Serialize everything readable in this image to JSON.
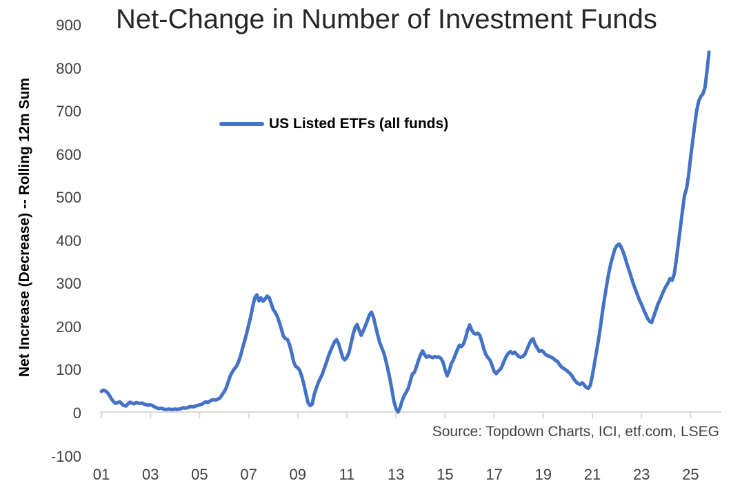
{
  "colors": {
    "series": "#4472C4",
    "axis": "#D9D9D9",
    "tick_text": "#404040",
    "title_text": "#262626"
  },
  "chart_data": {
    "type": "line",
    "title": "Net-Change in Number of Investment Funds",
    "xlabel": "",
    "ylabel": "Net Increase (Decrease) -- Rolling 12m Sum",
    "source_note": "Source: Topdown Charts, ICI, etf.com, LSEG",
    "legend_position": "upper-left-inside",
    "grid": "off",
    "ylim": [
      -100,
      900
    ],
    "xlim": [
      2001,
      2025.8
    ],
    "y_ticks": [
      900,
      800,
      700,
      600,
      500,
      400,
      300,
      200,
      100,
      0,
      -100
    ],
    "x_tick_years": [
      2001,
      2003,
      2005,
      2007,
      2009,
      2011,
      2013,
      2015,
      2017,
      2019,
      2021,
      2023,
      2025
    ],
    "x_tick_labels": [
      "01",
      "03",
      "05",
      "07",
      "09",
      "11",
      "13",
      "15",
      "17",
      "19",
      "21",
      "23",
      "25"
    ],
    "series": [
      {
        "name": "US Listed ETFs (all funds)",
        "start_year": 2001,
        "interval_months": 1,
        "values": [
          48,
          51,
          49,
          45,
          38,
          30,
          24,
          20,
          22,
          24,
          19,
          15,
          14,
          19,
          23,
          21,
          19,
          22,
          21,
          20,
          21,
          18,
          17,
          16,
          17,
          15,
          12,
          10,
          8,
          9,
          8,
          6,
          6,
          7,
          6,
          6,
          7,
          6,
          7,
          8,
          10,
          9,
          10,
          12,
          13,
          12,
          14,
          15,
          17,
          18,
          21,
          24,
          22,
          25,
          28,
          29,
          28,
          30,
          33,
          40,
          47,
          56,
          70,
          84,
          93,
          100,
          106,
          116,
          130,
          148,
          165,
          182,
          202,
          222,
          245,
          265,
          272,
          258,
          265,
          257,
          262,
          269,
          266,
          252,
          238,
          231,
          222,
          208,
          192,
          176,
          170,
          168,
          156,
          138,
          116,
          106,
          103,
          96,
          82,
          64,
          42,
          22,
          15,
          18,
          40,
          55,
          68,
          78,
          88,
          102,
          115,
          130,
          142,
          153,
          163,
          168,
          158,
          142,
          126,
          121,
          127,
          138,
          158,
          180,
          196,
          203,
          190,
          178,
          188,
          200,
          212,
          225,
          232,
          220,
          200,
          180,
          162,
          150,
          138,
          120,
          100,
          78,
          52,
          25,
          8,
          0,
          10,
          26,
          38,
          46,
          55,
          72,
          88,
          92,
          105,
          120,
          133,
          142,
          133,
          127,
          130,
          128,
          126,
          129,
          127,
          128,
          124,
          116,
          98,
          84,
          95,
          112,
          121,
          132,
          145,
          155,
          152,
          158,
          172,
          190,
          202,
          190,
          183,
          181,
          183,
          178,
          163,
          145,
          133,
          126,
          120,
          108,
          94,
          89,
          95,
          99,
          108,
          120,
          130,
          137,
          140,
          136,
          139,
          134,
          129,
          127,
          129,
          134,
          145,
          156,
          166,
          170,
          157,
          149,
          141,
          143,
          140,
          134,
          131,
          129,
          127,
          124,
          120,
          117,
          110,
          104,
          101,
          98,
          94,
          90,
          84,
          76,
          70,
          66,
          64,
          68,
          63,
          57,
          55,
          62,
          85,
          112,
          140,
          168,
          200,
          235,
          266,
          295,
          322,
          345,
          362,
          378,
          386,
          390,
          383,
          372,
          358,
          342,
          328,
          312,
          298,
          285,
          272,
          260,
          250,
          238,
          228,
          217,
          210,
          208,
          222,
          236,
          250,
          260,
          272,
          283,
          292,
          300,
          310,
          306,
          320,
          352,
          390,
          428,
          465,
          502,
          518,
          548,
          590,
          628,
          665,
          700,
          722,
          732,
          738,
          752,
          790,
          835
        ]
      }
    ]
  }
}
